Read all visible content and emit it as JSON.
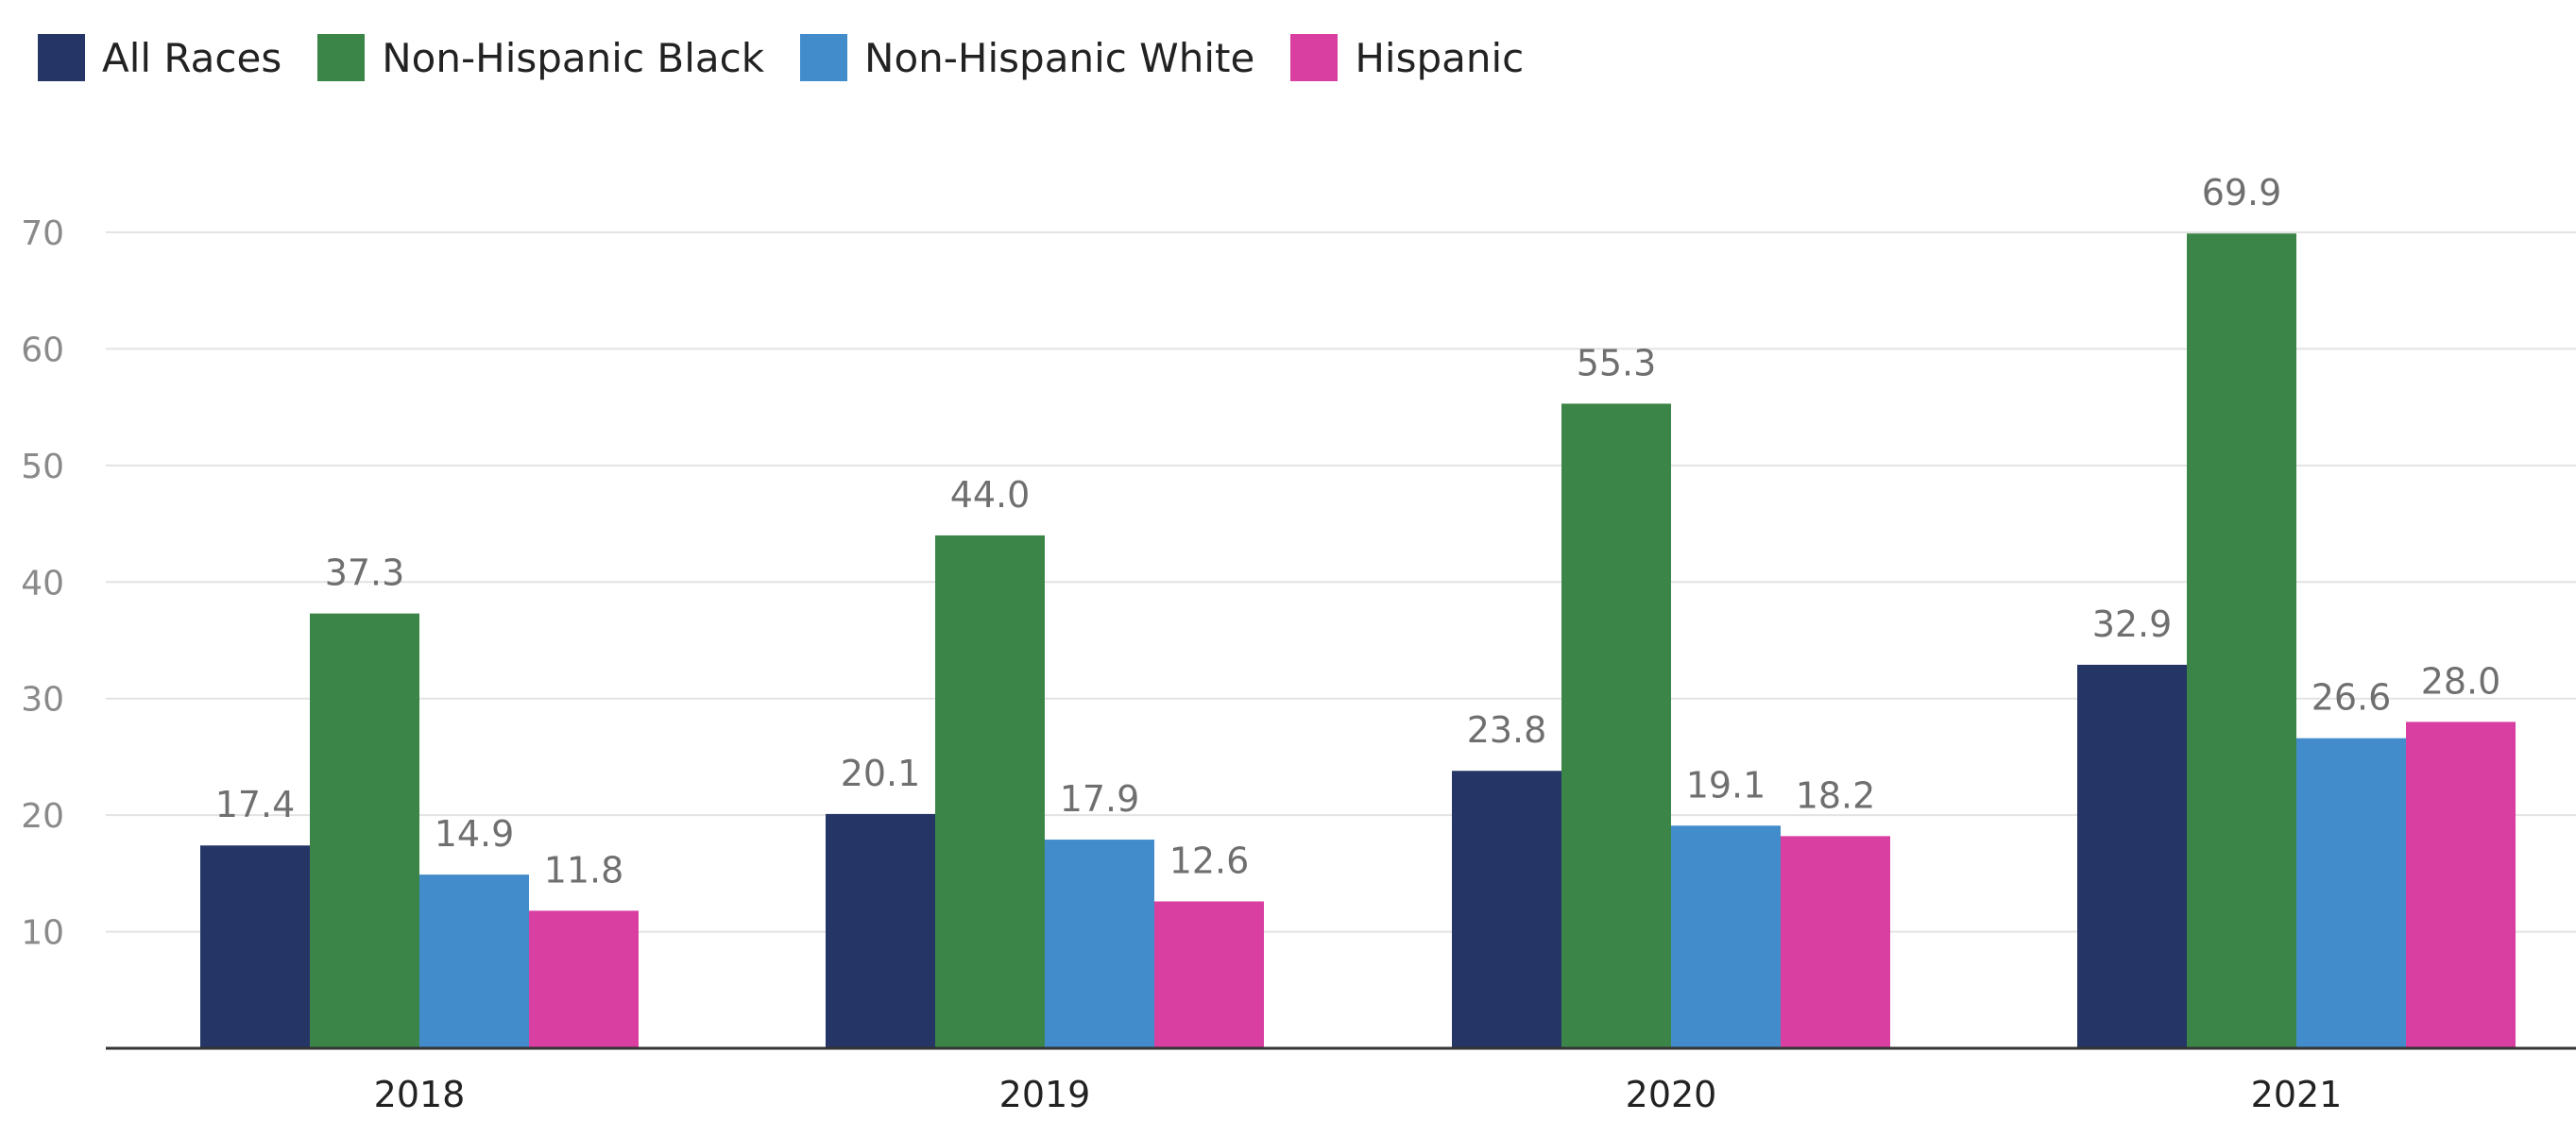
{
  "chart_data": {
    "type": "bar",
    "title": "",
    "xlabel": "",
    "ylabel": "",
    "categories": [
      "2018",
      "2019",
      "2020",
      "2021"
    ],
    "series": [
      {
        "name": "All Races",
        "color": "#253565",
        "values": [
          17.4,
          20.1,
          23.8,
          32.9
        ]
      },
      {
        "name": "Non-Hispanic Black",
        "color": "#3c8548",
        "values": [
          37.3,
          44.0,
          55.3,
          69.9
        ]
      },
      {
        "name": "Non-Hispanic White",
        "color": "#428ccb",
        "values": [
          14.9,
          17.9,
          19.1,
          26.6
        ]
      },
      {
        "name": "Hispanic",
        "color": "#d93ea1",
        "values": [
          11.8,
          12.6,
          18.2,
          28.0
        ]
      }
    ],
    "ylim": [
      0,
      70
    ],
    "yticks": [
      10,
      20,
      30,
      40,
      50,
      60,
      70
    ],
    "grid": true,
    "legend": "top-left",
    "data_labels": true
  }
}
